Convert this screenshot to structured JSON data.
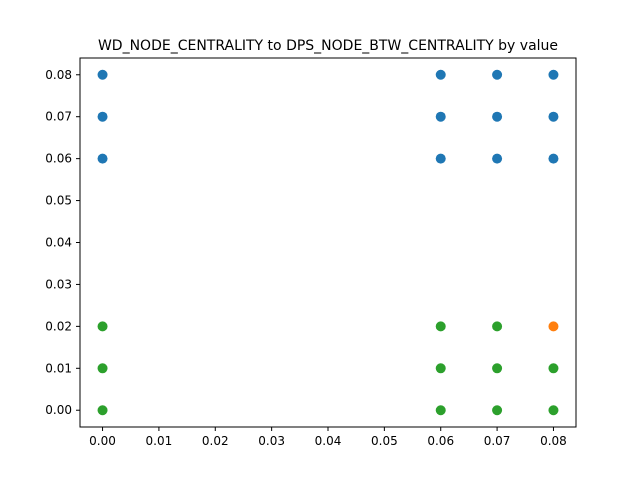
{
  "chart_data": {
    "type": "scatter",
    "title": "WD_NODE_CENTRALITY to DPS_NODE_BTW_CENTRALITY by value",
    "xlabel": "",
    "ylabel": "",
    "xlim": [
      -0.004,
      0.084
    ],
    "ylim": [
      -0.004,
      0.084
    ],
    "x_ticks": [
      "0.00",
      "0.01",
      "0.02",
      "0.03",
      "0.04",
      "0.05",
      "0.06",
      "0.07",
      "0.08"
    ],
    "y_ticks": [
      "0.00",
      "0.01",
      "0.02",
      "0.03",
      "0.04",
      "0.05",
      "0.06",
      "0.07",
      "0.08"
    ],
    "grid": false,
    "series": [
      {
        "color": "#1f77b4",
        "points": [
          [
            0.0,
            0.08
          ],
          [
            0.0,
            0.07
          ],
          [
            0.0,
            0.06
          ],
          [
            0.06,
            0.08
          ],
          [
            0.06,
            0.07
          ],
          [
            0.06,
            0.06
          ],
          [
            0.07,
            0.08
          ],
          [
            0.07,
            0.07
          ],
          [
            0.07,
            0.06
          ],
          [
            0.08,
            0.08
          ],
          [
            0.08,
            0.07
          ],
          [
            0.08,
            0.06
          ]
        ]
      },
      {
        "color": "#ff7f0e",
        "points": [
          [
            0.08,
            0.02
          ]
        ]
      },
      {
        "color": "#2ca02c",
        "points": [
          [
            0.0,
            0.02
          ],
          [
            0.0,
            0.01
          ],
          [
            0.0,
            0.0
          ],
          [
            0.06,
            0.02
          ],
          [
            0.06,
            0.01
          ],
          [
            0.06,
            0.0
          ],
          [
            0.07,
            0.02
          ],
          [
            0.07,
            0.01
          ],
          [
            0.07,
            0.0
          ],
          [
            0.08,
            0.01
          ],
          [
            0.08,
            0.0
          ]
        ]
      }
    ]
  }
}
